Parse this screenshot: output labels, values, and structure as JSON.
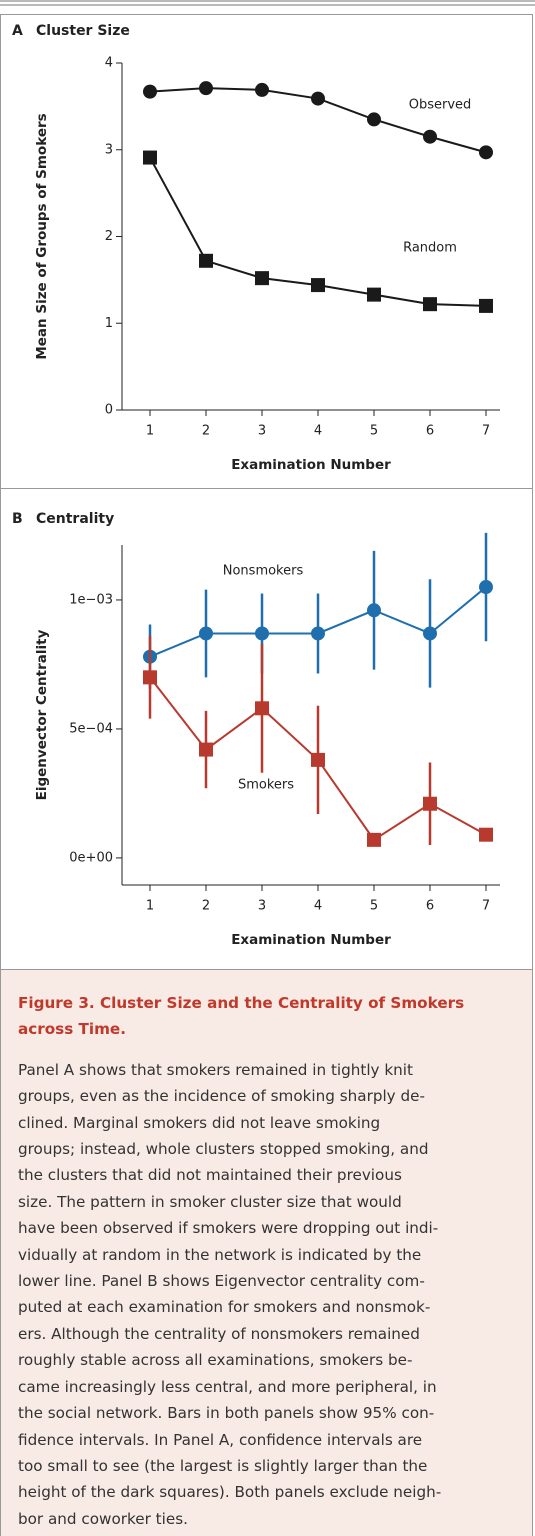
{
  "chart_data": [
    {
      "type": "line",
      "panel": "A",
      "title": "Cluster Size",
      "xlabel": "Examination Number",
      "ylabel": "Mean Size of Groups of Smokers",
      "x": [
        1,
        2,
        3,
        4,
        5,
        6,
        7
      ],
      "xlim": [
        0.5,
        7.25
      ],
      "xticks": [
        1,
        2,
        3,
        4,
        5,
        6,
        7
      ],
      "ylim": [
        0,
        4
      ],
      "yticks": [
        0,
        1,
        2,
        3,
        4
      ],
      "series": [
        {
          "name": "Observed",
          "color": "#1a1a1a",
          "marker": "circle",
          "values": [
            3.67,
            3.71,
            3.69,
            3.59,
            3.35,
            3.15,
            2.97
          ]
        },
        {
          "name": "Random",
          "color": "#1a1a1a",
          "marker": "square",
          "values": [
            2.91,
            1.72,
            1.52,
            1.44,
            1.33,
            1.22,
            1.2
          ]
        }
      ]
    },
    {
      "type": "line",
      "panel": "B",
      "title": "Centrality",
      "xlabel": "Examination Number",
      "ylabel": "Eigenvector Centrality",
      "x": [
        1,
        2,
        3,
        4,
        5,
        6,
        7
      ],
      "xlim": [
        0.5,
        7.25
      ],
      "xticks": [
        1,
        2,
        3,
        4,
        5,
        6,
        7
      ],
      "ylim": [
        -0.000105,
        0.001213
      ],
      "yticks": [
        {
          "value": 0,
          "label": "0e+00"
        },
        {
          "value": 0.0005,
          "label": "5e−04"
        },
        {
          "value": 0.001,
          "label": "1e−03"
        }
      ],
      "series": [
        {
          "name": "Nonsmokers",
          "color": "#1f6fae",
          "marker": "circle",
          "values": [
            0.00078,
            0.00087,
            0.00087,
            0.00087,
            0.00096,
            0.00087,
            0.00105
          ],
          "errors": [
            0.000125,
            0.00017,
            0.000155,
            0.000155,
            0.00023,
            0.00021,
            0.00021
          ]
        },
        {
          "name": "Smokers",
          "color": "#b83a2e",
          "marker": "square",
          "values": [
            0.0007,
            0.00042,
            0.00058,
            0.00038,
            7e-05,
            0.00021,
            9e-05
          ],
          "errors": [
            0.00016,
            0.00015,
            0.00025,
            0.00021,
            0,
            0.00016,
            0
          ]
        }
      ]
    }
  ],
  "caption": {
    "label": "Figure 3.",
    "title": "Cluster Size and the Centrality of Smokers across Time.",
    "lines": [
      "Panel A shows that smokers remained in tightly knit",
      "groups, even as the incidence of smoking sharply de-",
      "clined. Marginal smokers did not leave smoking",
      "groups; instead, whole clusters stopped smoking, and",
      "the clusters that did not maintained their previous",
      "size. The pattern in smoker cluster size that would",
      "have been observed if smokers were dropping out indi-",
      "vidually at random in the network is indicated by the",
      "lower line. Panel B shows Eigenvector centrality com-",
      "puted at each examination for smokers and nonsmok-",
      "ers. Although the centrality of nonsmokers remained",
      "roughly stable across all examinations, smokers be-",
      "came increasingly less central, and more peripheral, in",
      "the social network. Bars in both panels show 95% con-",
      "fidence intervals. In Panel A, confidence intervals are",
      "too small to see (the largest is slightly larger than the",
      "height of the dark squares). Both panels exclude neigh-",
      "bor and coworker ties."
    ]
  }
}
